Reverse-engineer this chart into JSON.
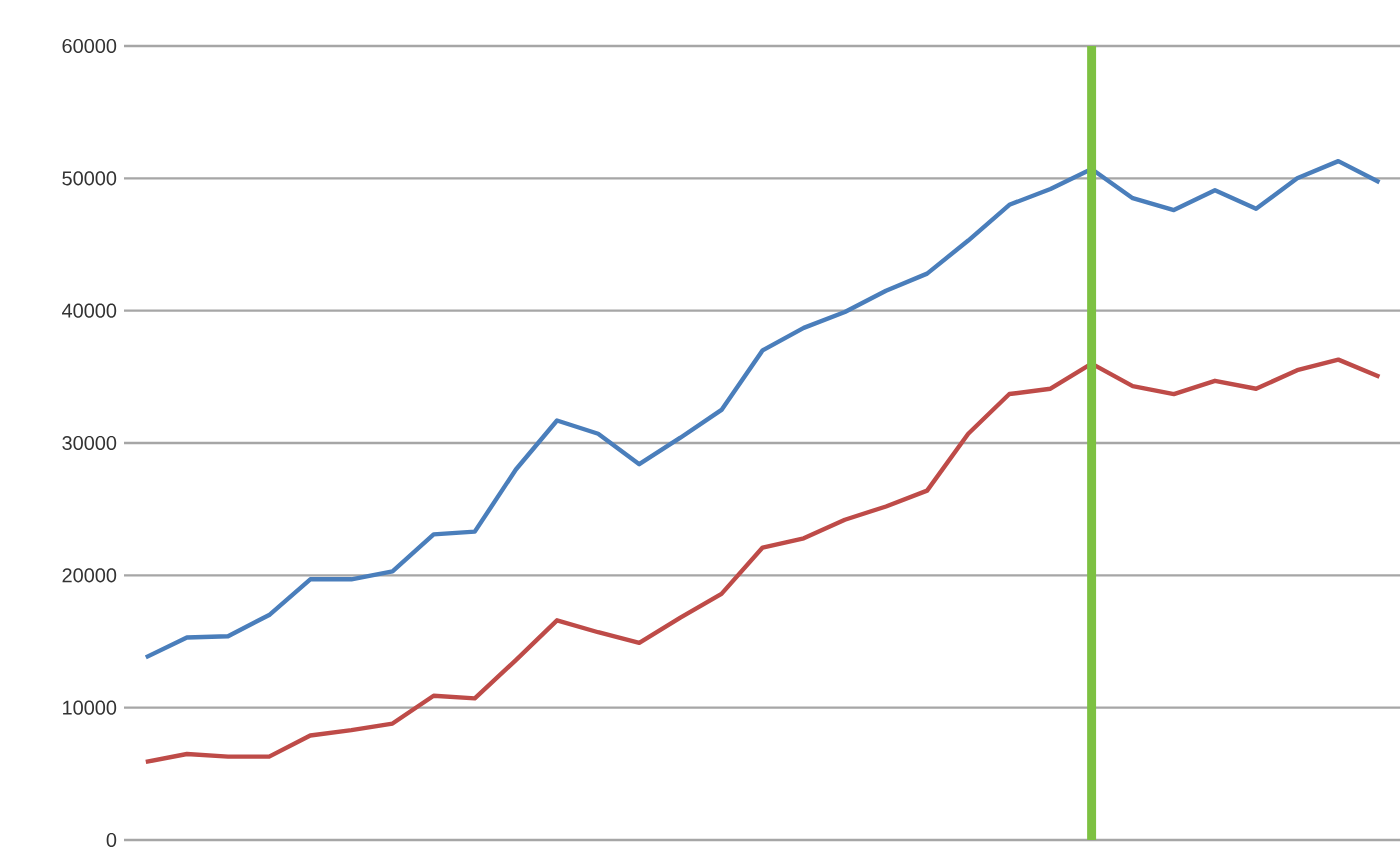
{
  "chart_data": {
    "type": "line",
    "categories": [
      null,
      null,
      null,
      null,
      null,
      null,
      null,
      null,
      null,
      null,
      null,
      null,
      null,
      null,
      null,
      null,
      null,
      null,
      null,
      null,
      null,
      null,
      null,
      null,
      null,
      null,
      null,
      null,
      null,
      null,
      null
    ],
    "series": [
      {
        "color": "#4a7ebb",
        "values": [
          13800,
          15300,
          15400,
          17000,
          19700,
          19700,
          20300,
          23100,
          23300,
          28000,
          31700,
          30700,
          28400,
          30400,
          32500,
          37000,
          38700,
          39900,
          41500,
          42800,
          45300,
          48000,
          49200,
          50700,
          48500,
          47600,
          49100,
          47700,
          50000,
          51300,
          49700
        ]
      },
      {
        "color": "#be4b48",
        "values": [
          5900,
          6500,
          6300,
          6300,
          7900,
          8300,
          8800,
          10900,
          10700,
          13600,
          16600,
          15700,
          14900,
          16800,
          18600,
          22100,
          22800,
          24200,
          25200,
          26400,
          30700,
          33700,
          34100,
          36000,
          34300,
          33700,
          34700,
          34100,
          35500,
          36300,
          35000
        ]
      }
    ],
    "ylim": [
      0,
      60000
    ],
    "yticks": [
      0,
      10000,
      20000,
      30000,
      40000,
      50000,
      60000
    ],
    "grid": "y",
    "tick_labels": "y",
    "marker": "none",
    "line_style": "solid"
  }
}
